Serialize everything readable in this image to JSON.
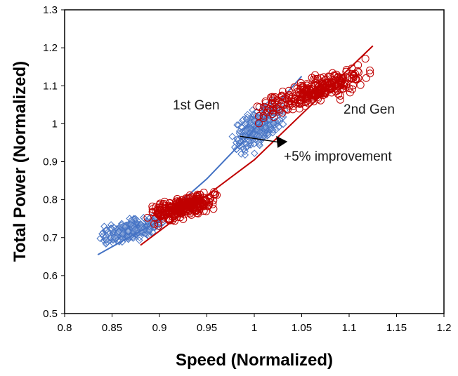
{
  "chart_data": {
    "type": "scatter",
    "xlabel": "Speed (Normalized)",
    "ylabel": "Total Power (Normalized)",
    "xlim": [
      0.8,
      1.2
    ],
    "ylim": [
      0.5,
      1.3
    ],
    "xticks": [
      "0.8",
      "0.85",
      "0.9",
      "0.95",
      "1",
      "1.05",
      "1.1",
      "1.15",
      "1.2"
    ],
    "yticks": [
      "0.5",
      "0.6",
      "0.7",
      "0.8",
      "0.9",
      "1",
      "1.1",
      "1.2",
      "1.3"
    ],
    "grid": false,
    "series": [
      {
        "name": "1st Gen",
        "marker": "diamond",
        "color": "#4472C4",
        "clusters": [
          {
            "x_range": [
              0.835,
              0.905
            ],
            "center_y": 0.72,
            "slope": 0.57,
            "spread": 0.012
          },
          {
            "x_range": [
              0.975,
              1.035
            ],
            "center_y": 0.99,
            "slope": 1.3,
            "spread": 0.022
          }
        ],
        "fit_line": {
          "points": [
            [
              0.835,
              0.655
            ],
            [
              0.86,
              0.69
            ],
            [
              0.9,
              0.745
            ],
            [
              0.95,
              0.855
            ],
            [
              1.0,
              0.985
            ],
            [
              1.05,
              1.125
            ]
          ]
        }
      },
      {
        "name": "2nd Gen",
        "marker": "circle",
        "color": "#C00000",
        "clusters": [
          {
            "x_range": [
              0.885,
              0.965
            ],
            "center_y": 0.78,
            "slope": 0.7,
            "spread": 0.012
          },
          {
            "x_range": [
              1.0,
              1.125
            ],
            "center_y": 1.085,
            "slope": 0.85,
            "spread": 0.015
          }
        ],
        "fit_line": {
          "points": [
            [
              0.88,
              0.68
            ],
            [
              1.0,
              0.905
            ],
            [
              1.05,
              1.025
            ],
            [
              1.1,
              1.145
            ],
            [
              1.125,
              1.205
            ]
          ]
        }
      }
    ],
    "annotations": [
      {
        "text": "+5% improvement",
        "arrow_from": [
          0.985,
          0.967
        ],
        "arrow_to": [
          1.035,
          0.953
        ]
      }
    ]
  }
}
